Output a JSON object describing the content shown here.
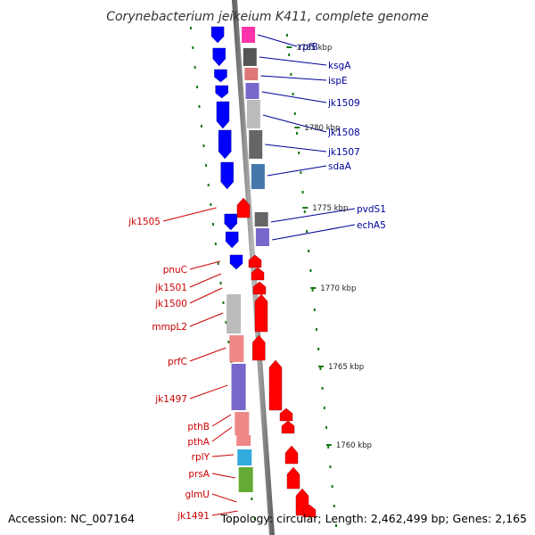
{
  "title": "Corynebacterium jeikeium K411, complete genome",
  "footer": {
    "accession": "Accession: NC_007164",
    "topology": "Topology: circular; Length: 2,462,499 bp; Genes: 2,165"
  },
  "colors": {
    "forward_strand": "#ff0000",
    "reverse_strand": "#0000ff",
    "forward_label": "#cc0000",
    "reverse_label": "#000099",
    "backbone": "#888888",
    "ruler_ticks": "#117711"
  },
  "ruler": [
    {
      "label": "1785 kbp"
    },
    {
      "label": "1780 kbp"
    },
    {
      "label": "1775 kbp"
    },
    {
      "label": "1770 kbp"
    },
    {
      "label": "1765 kbp"
    },
    {
      "label": "1760 kbp"
    }
  ],
  "genes_reverse": [
    {
      "label": "rpfB",
      "cog_color": "#ff33aa"
    },
    {
      "label": "ksgA",
      "cog_color": "#555555"
    },
    {
      "label": "ispE",
      "cog_color": "#dd7777"
    },
    {
      "label": "jk1509",
      "cog_color": "#7766cc"
    },
    {
      "label": "jk1508",
      "cog_color": "#bbbbbb"
    },
    {
      "label": "jk1507",
      "cog_color": "#666666"
    },
    {
      "label": "sdaA",
      "cog_color": "#4477aa"
    },
    {
      "label": "pvdS1",
      "cog_color": "#666666"
    },
    {
      "label": "echA5",
      "cog_color": "#7766cc"
    }
  ],
  "genes_forward": [
    {
      "label": "jk1505",
      "cog_color": ""
    },
    {
      "label": "pnuC",
      "cog_color": ""
    },
    {
      "label": "jk1501",
      "cog_color": ""
    },
    {
      "label": "jk1500",
      "cog_color": ""
    },
    {
      "label": "mmpL2",
      "cog_color": "#bbbbbb"
    },
    {
      "label": "prfC",
      "cog_color": "#ee8888"
    },
    {
      "label": "jk1497",
      "cog_color": "#7766cc"
    },
    {
      "label": "pthB",
      "cog_color": "#ee8888"
    },
    {
      "label": "pthA",
      "cog_color": "#ee8888"
    },
    {
      "label": "rplY",
      "cog_color": "#33aadd"
    },
    {
      "label": "prsA",
      "cog_color": "#66aa33"
    },
    {
      "label": "glmU",
      "cog_color": ""
    },
    {
      "label": "jk1491",
      "cog_color": ""
    }
  ]
}
